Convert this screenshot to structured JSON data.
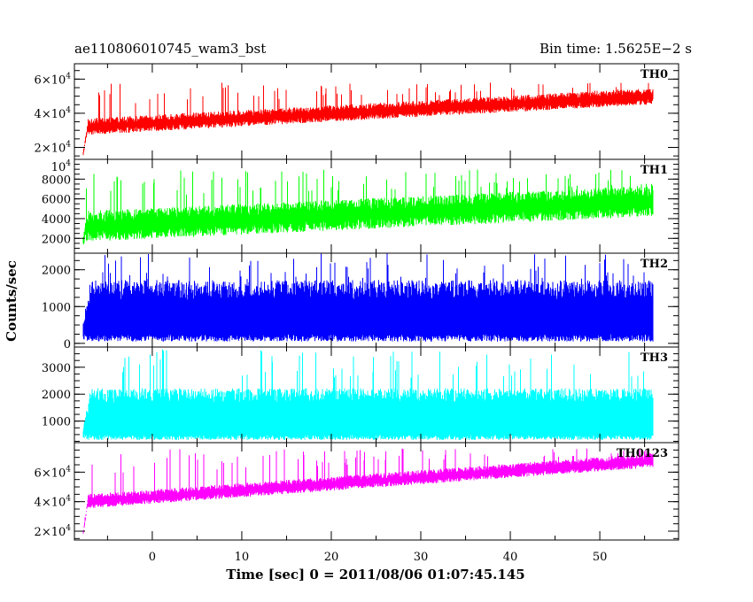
{
  "header": {
    "left_title": "ae110806010745_wam3_bst",
    "right_title": "Bin time: 1.5625E−2 s"
  },
  "axes": {
    "xlabel": "Time [sec] 0 = 2011/08/06 01:07:45.145",
    "ylabel": "Counts/sec"
  },
  "chart_data": [
    {
      "type": "line",
      "name": "TH0",
      "color": "#ff0000",
      "xlim": [
        -8.7,
        58.8
      ],
      "ylim": [
        13000,
        69000
      ],
      "yticks": [
        20000,
        40000,
        60000
      ],
      "ytick_labels": [
        {
          "m": "2×10",
          "e": "4"
        },
        {
          "m": "4×10",
          "e": "4"
        },
        {
          "m": "6×10",
          "e": "4"
        }
      ],
      "x_start": -7.8,
      "x_end": 56.0,
      "onset_at": -7.2,
      "floor_at_start": 14000,
      "trend_start": 32000,
      "trend_end": 50000,
      "noise": 4000,
      "spike_max": 58000
    },
    {
      "type": "line",
      "name": "TH1",
      "color": "#00ff00",
      "xlim": [
        -8.7,
        58.8
      ],
      "ylim": [
        500,
        10000
      ],
      "yticks": [
        2000,
        4000,
        6000,
        8000
      ],
      "ytick_labels": [
        {
          "m": "2000",
          "e": ""
        },
        {
          "m": "4000",
          "e": ""
        },
        {
          "m": "6000",
          "e": ""
        },
        {
          "m": "8000",
          "e": ""
        }
      ],
      "top_label": {
        "m": "10",
        "e": "4"
      },
      "x_start": -7.8,
      "x_end": 56.0,
      "onset_at": -7.4,
      "floor_at_start": 1000,
      "trend_start": 3200,
      "trend_end": 5800,
      "noise": 1300,
      "spike_max": 9000
    },
    {
      "type": "line",
      "name": "TH2",
      "color": "#0000ff",
      "xlim": [
        -8.7,
        58.8
      ],
      "ylim": [
        -100,
        2450
      ],
      "yticks": [
        0,
        1000,
        2000
      ],
      "ytick_labels": [
        {
          "m": "0",
          "e": ""
        },
        {
          "m": "1000",
          "e": ""
        },
        {
          "m": "2000",
          "e": ""
        }
      ],
      "x_start": -7.8,
      "x_end": 56.0,
      "onset_at": -7.0,
      "floor_at_start": 300,
      "trend_start": 1000,
      "trend_end": 1000,
      "noise": 600,
      "spike_max": 2450
    },
    {
      "type": "line",
      "name": "TH3",
      "color": "#00ffff",
      "xlim": [
        -8.7,
        58.8
      ],
      "ylim": [
        200,
        3750
      ],
      "yticks": [
        1000,
        2000,
        3000
      ],
      "ytick_labels": [
        {
          "m": "1000",
          "e": ""
        },
        {
          "m": "2000",
          "e": ""
        },
        {
          "m": "3000",
          "e": ""
        }
      ],
      "x_start": -7.8,
      "x_end": 56.0,
      "onset_at": -7.0,
      "floor_at_start": 500,
      "trend_start": 1500,
      "trend_end": 1500,
      "noise": 600,
      "spike_max": 3700
    },
    {
      "type": "line",
      "name": "TH0123",
      "color": "#ff00ff",
      "xlim": [
        -8.7,
        58.8
      ],
      "ylim": [
        14000,
        80000
      ],
      "yticks": [
        20000,
        40000,
        60000
      ],
      "ytick_labels": [
        {
          "m": "2×10",
          "e": "4"
        },
        {
          "m": "4×10",
          "e": "4"
        },
        {
          "m": "6×10",
          "e": "4"
        }
      ],
      "x_start": -7.8,
      "x_end": 56.0,
      "onset_at": -7.2,
      "floor_at_start": 15000,
      "trend_start": 40000,
      "trend_end": 68000,
      "noise": 4000,
      "spike_max": 76000
    }
  ],
  "x_ticks": {
    "labeled": [
      0,
      10,
      20,
      30,
      40,
      50
    ],
    "labels": [
      "0",
      "10",
      "20",
      "30",
      "40",
      "50"
    ]
  }
}
